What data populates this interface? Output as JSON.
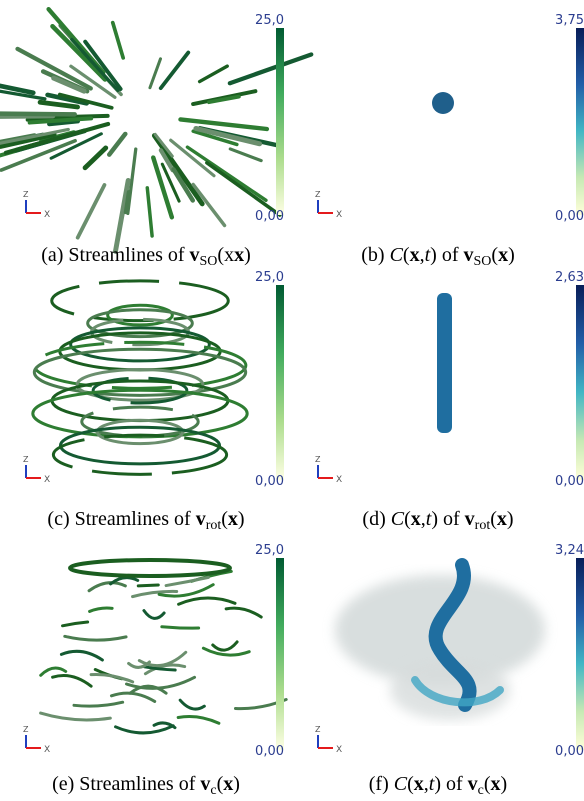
{
  "panels": [
    {
      "colorbar": {
        "max": "25,0",
        "min": "0,00"
      },
      "axes": {
        "z": "Z",
        "x": "X"
      },
      "caption": [
        {
          "text": "(a) Streamlines of "
        },
        {
          "text": "v",
          "style": "bold"
        },
        {
          "text": "SO",
          "style": "sub"
        },
        {
          "text": "(x",
          "style": "plain"
        },
        {
          "text": "x",
          "style": "bold"
        },
        {
          "text": ")"
        }
      ]
    },
    {
      "colorbar": {
        "max": "3,75",
        "min": "0,00"
      },
      "axes": {
        "z": "Z",
        "x": "X"
      },
      "caption": [
        {
          "text": "(b) "
        },
        {
          "text": "C",
          "style": "italic"
        },
        {
          "text": "("
        },
        {
          "text": "x",
          "style": "bold"
        },
        {
          "text": ","
        },
        {
          "text": "t",
          "style": "italic"
        },
        {
          "text": ") of "
        },
        {
          "text": "v",
          "style": "bold"
        },
        {
          "text": "SO",
          "style": "sub"
        },
        {
          "text": "("
        },
        {
          "text": "x",
          "style": "bold"
        },
        {
          "text": ")"
        }
      ]
    },
    {
      "colorbar": {
        "max": "25,0",
        "min": "0,00"
      },
      "axes": {
        "z": "Z",
        "x": "X"
      },
      "caption": [
        {
          "text": "(c) Streamlines of "
        },
        {
          "text": "v",
          "style": "bold"
        },
        {
          "text": "rot",
          "style": "sub"
        },
        {
          "text": "("
        },
        {
          "text": "x",
          "style": "bold"
        },
        {
          "text": ")"
        }
      ]
    },
    {
      "colorbar": {
        "max": "2,63",
        "min": "0,00"
      },
      "axes": {
        "z": "Z",
        "x": "X"
      },
      "caption": [
        {
          "text": "(d) "
        },
        {
          "text": "C",
          "style": "italic"
        },
        {
          "text": "("
        },
        {
          "text": "x",
          "style": "bold"
        },
        {
          "text": ","
        },
        {
          "text": "t",
          "style": "italic"
        },
        {
          "text": ") of "
        },
        {
          "text": "v",
          "style": "bold"
        },
        {
          "text": "rot",
          "style": "sub"
        },
        {
          "text": "("
        },
        {
          "text": "x",
          "style": "bold"
        },
        {
          "text": ")"
        }
      ]
    },
    {
      "colorbar": {
        "max": "25,0",
        "min": "0,00"
      },
      "axes": {
        "z": "Z",
        "x": "X"
      },
      "caption": [
        {
          "text": "(e) Streamlines of "
        },
        {
          "text": "v",
          "style": "bold"
        },
        {
          "text": "c",
          "style": "sub"
        },
        {
          "text": "("
        },
        {
          "text": "x",
          "style": "bold"
        },
        {
          "text": ")"
        }
      ]
    },
    {
      "colorbar": {
        "max": "3,24",
        "min": "0,00"
      },
      "axes": {
        "z": "Z",
        "x": "X"
      },
      "caption": [
        {
          "text": "(f) "
        },
        {
          "text": "C",
          "style": "italic"
        },
        {
          "text": "("
        },
        {
          "text": "x",
          "style": "bold"
        },
        {
          "text": ","
        },
        {
          "text": "t",
          "style": "italic"
        },
        {
          "text": ") of "
        },
        {
          "text": "v",
          "style": "bold"
        },
        {
          "text": "c",
          "style": "sub"
        },
        {
          "text": "("
        },
        {
          "text": "x",
          "style": "bold"
        },
        {
          "text": ")"
        }
      ]
    }
  ]
}
